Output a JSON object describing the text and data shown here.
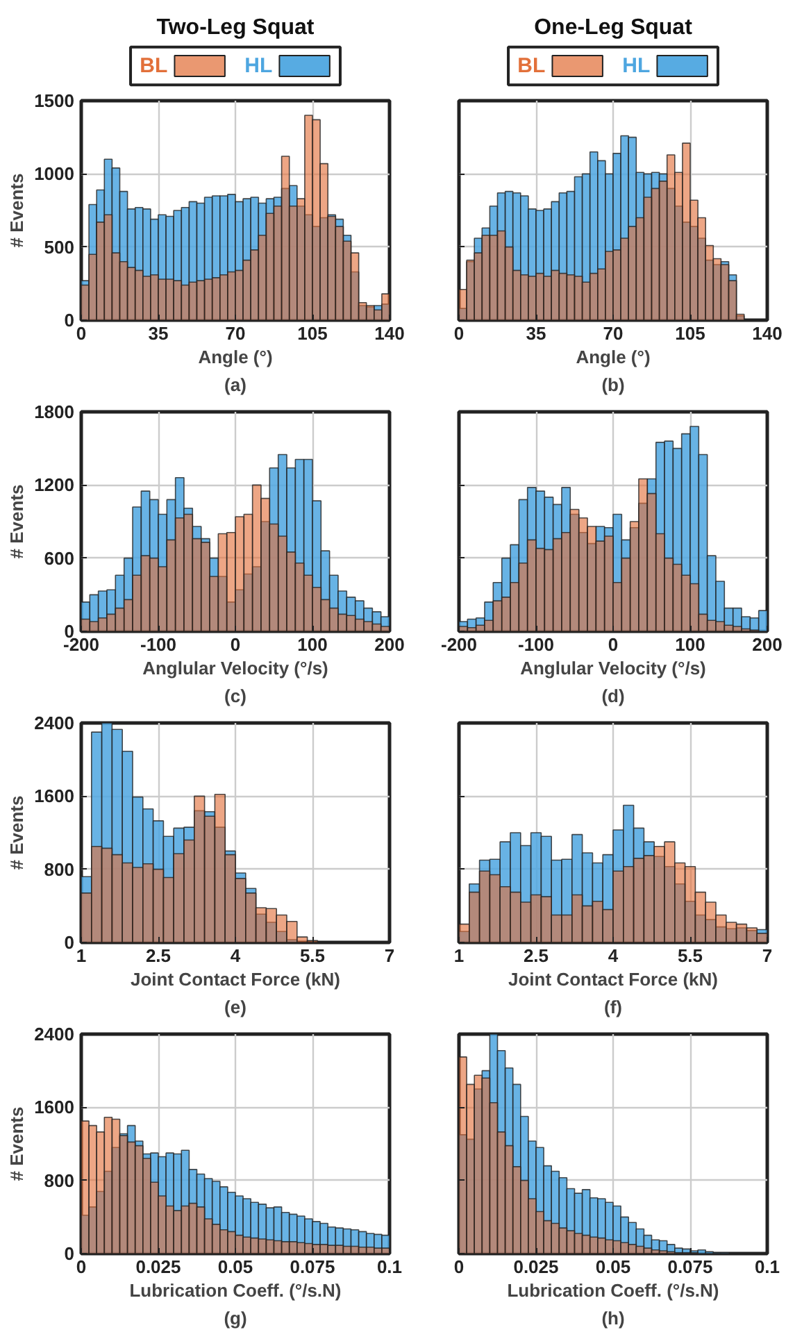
{
  "chart_data": [
    {
      "type": "histogram",
      "title": "Two-Leg Squat",
      "xlabel": "Angle (°)",
      "ylabel": "# Events",
      "annotations": [
        "(a)"
      ],
      "legend": "top",
      "grid": true,
      "bins": [
        0,
        3.5,
        7,
        10.5,
        14,
        17.5,
        21,
        24.5,
        28,
        31.5,
        35,
        38.5,
        42,
        45.5,
        49,
        52.5,
        56,
        59.5,
        63,
        66.5,
        70,
        73.5,
        77,
        80.5,
        84,
        87.5,
        91,
        94.5,
        98,
        101.5,
        105,
        108.5,
        112,
        115.5,
        119,
        122.5,
        126,
        129.5,
        133,
        136.5,
        140
      ],
      "series": [
        {
          "name": "HL",
          "color": "#4ea6e0",
          "values": [
            270,
            790,
            890,
            1100,
            1040,
            880,
            760,
            770,
            760,
            690,
            720,
            710,
            750,
            770,
            810,
            800,
            840,
            850,
            850,
            860,
            810,
            830,
            840,
            800,
            830,
            840,
            900,
            920,
            780,
            720,
            640,
            700,
            720,
            690,
            580,
            330,
            100,
            90,
            100,
            110
          ]
        },
        {
          "name": "BL",
          "color": "#e2703a",
          "values": [
            240,
            450,
            670,
            720,
            460,
            400,
            360,
            340,
            300,
            310,
            280,
            280,
            270,
            240,
            260,
            270,
            280,
            290,
            310,
            330,
            340,
            410,
            480,
            580,
            730,
            780,
            1120,
            780,
            830,
            1400,
            1370,
            1070,
            710,
            640,
            540,
            460,
            120,
            100,
            70,
            180
          ]
        }
      ],
      "xlim": [
        0,
        140
      ],
      "xticks": [
        0,
        35,
        70,
        105,
        140
      ],
      "ylim": [
        0,
        1500
      ],
      "yticks": [
        0,
        500,
        1000,
        1500
      ]
    },
    {
      "type": "histogram",
      "title": "One-Leg Squat",
      "xlabel": "Angle (°)",
      "annotations": [
        "(b)"
      ],
      "legend": "top",
      "grid": true,
      "tick_labels": "x",
      "bins": [
        0,
        3.5,
        7,
        10.5,
        14,
        17.5,
        21,
        24.5,
        28,
        31.5,
        35,
        38.5,
        42,
        45.5,
        49,
        52.5,
        56,
        59.5,
        63,
        66.5,
        70,
        73.5,
        77,
        80.5,
        84,
        87.5,
        91,
        94.5,
        98,
        101.5,
        105,
        108.5,
        112,
        115.5,
        119,
        122.5,
        126,
        129.5,
        133,
        136.5,
        140
      ],
      "series": [
        {
          "name": "HL",
          "color": "#4ea6e0",
          "values": [
            80,
            400,
            560,
            630,
            780,
            870,
            880,
            870,
            850,
            760,
            750,
            760,
            810,
            870,
            880,
            980,
            1000,
            1150,
            1090,
            1000,
            1140,
            1260,
            1250,
            1010,
            1000,
            1010,
            1000,
            900,
            780,
            670,
            640,
            560,
            410,
            380,
            400,
            310,
            30,
            0,
            0,
            0
          ]
        },
        {
          "name": "BL",
          "color": "#e2703a",
          "values": [
            210,
            410,
            460,
            580,
            580,
            610,
            500,
            340,
            310,
            300,
            320,
            300,
            340,
            320,
            310,
            300,
            260,
            320,
            350,
            470,
            480,
            560,
            640,
            700,
            840,
            900,
            950,
            1130,
            1010,
            1210,
            820,
            700,
            510,
            420,
            380,
            270,
            40,
            0,
            0,
            0
          ]
        }
      ],
      "xlim": [
        0,
        140
      ],
      "xticks": [
        0,
        35,
        70,
        105,
        140
      ],
      "ylim": [
        0,
        1500
      ],
      "yticks": [
        0,
        500,
        1000,
        1500
      ]
    },
    {
      "type": "histogram",
      "xlabel": "Anglular Velocity (°/s)",
      "ylabel": "# Events",
      "annotations": [
        "(c)"
      ],
      "grid": true,
      "bins": [
        -200,
        -188.9,
        -177.8,
        -166.7,
        -155.6,
        -144.4,
        -133.3,
        -122.2,
        -111.1,
        -100,
        -88.9,
        -77.8,
        -66.7,
        -55.6,
        -44.4,
        -33.3,
        -22.2,
        -11.1,
        0,
        11.1,
        22.2,
        33.3,
        44.4,
        55.6,
        66.7,
        77.8,
        88.9,
        100,
        111.1,
        122.2,
        133.3,
        144.4,
        155.6,
        166.7,
        177.8,
        188.9,
        200
      ],
      "series": [
        {
          "color": "#4ea6e0",
          "values": [
            240,
            300,
            330,
            340,
            460,
            600,
            1020,
            1150,
            1080,
            960,
            1080,
            1260,
            1010,
            860,
            760,
            600,
            450,
            240,
            340,
            470,
            530,
            900,
            1340,
            1450,
            1340,
            1410,
            1410,
            1070,
            660,
            460,
            330,
            280,
            250,
            190,
            160,
            120
          ]
        },
        {
          "color": "#e2703a",
          "values": [
            100,
            80,
            110,
            140,
            190,
            260,
            460,
            620,
            600,
            530,
            750,
            930,
            960,
            760,
            730,
            450,
            800,
            810,
            940,
            960,
            1200,
            1090,
            880,
            780,
            650,
            560,
            460,
            360,
            260,
            190,
            140,
            130,
            100,
            80,
            60,
            40
          ]
        }
      ],
      "xlim": [
        -200,
        200
      ],
      "xticks": [
        -200,
        -100,
        0,
        100,
        200
      ],
      "ylim": [
        0,
        1800
      ],
      "yticks": [
        0,
        600,
        1200,
        1800
      ]
    },
    {
      "type": "histogram",
      "xlabel": "Anglular Velocity (°/s)",
      "annotations": [
        "(d)"
      ],
      "grid": true,
      "tick_labels": "x",
      "bins": [
        -200,
        -188.9,
        -177.8,
        -166.7,
        -155.6,
        -144.4,
        -133.3,
        -122.2,
        -111.1,
        -100,
        -88.9,
        -77.8,
        -66.7,
        -55.6,
        -44.4,
        -33.3,
        -22.2,
        -11.1,
        0,
        11.1,
        22.2,
        33.3,
        44.4,
        55.6,
        66.7,
        77.8,
        88.9,
        100,
        111.1,
        122.2,
        133.3,
        144.4,
        155.6,
        166.7,
        177.8,
        188.9,
        200
      ],
      "series": [
        {
          "color": "#4ea6e0",
          "values": [
            80,
            100,
            110,
            240,
            400,
            600,
            710,
            1080,
            1180,
            1150,
            1100,
            1040,
            1180,
            960,
            810,
            720,
            860,
            850,
            960,
            750,
            850,
            1050,
            1250,
            1550,
            1560,
            1500,
            1620,
            1680,
            1450,
            620,
            410,
            190,
            190,
            120,
            110,
            170
          ]
        },
        {
          "color": "#e2703a",
          "values": [
            40,
            30,
            50,
            90,
            250,
            280,
            400,
            560,
            750,
            680,
            670,
            760,
            810,
            1000,
            930,
            860,
            740,
            780,
            400,
            600,
            900,
            1250,
            1130,
            800,
            600,
            550,
            460,
            390,
            140,
            90,
            80,
            50,
            40,
            20,
            10,
            0
          ]
        }
      ],
      "xlim": [
        -200,
        200
      ],
      "xticks": [
        -200,
        -100,
        0,
        100,
        200
      ],
      "ylim": [
        0,
        1800
      ],
      "yticks": [
        0,
        600,
        1200,
        1800
      ]
    },
    {
      "type": "histogram",
      "xlabel": "Joint Contact Force (kN)",
      "ylabel": "# Events",
      "annotations": [
        "(e)"
      ],
      "grid": true,
      "bins": [
        1,
        1.2,
        1.4,
        1.6,
        1.8,
        2,
        2.2,
        2.4,
        2.6,
        2.8,
        3,
        3.2,
        3.4,
        3.6,
        3.8,
        4,
        4.2,
        4.4,
        4.6,
        4.8,
        5,
        5.2,
        5.4,
        5.6,
        5.8,
        6,
        6.2,
        6.4,
        6.6,
        6.8,
        7
      ],
      "series": [
        {
          "color": "#4ea6e0",
          "values": [
            720,
            2300,
            2400,
            2330,
            2090,
            1590,
            1460,
            1330,
            1160,
            1250,
            1260,
            1440,
            1430,
            1260,
            1000,
            760,
            590,
            310,
            220,
            120,
            30,
            null,
            0,
            0,
            0,
            0,
            0,
            0,
            0,
            0
          ]
        },
        {
          "color": "#e2703a",
          "values": [
            540,
            1050,
            1030,
            960,
            870,
            820,
            860,
            800,
            710,
            970,
            1120,
            1600,
            1380,
            1620,
            960,
            700,
            540,
            380,
            370,
            300,
            230,
            60,
            20,
            0,
            0,
            0,
            0,
            0,
            0,
            0
          ]
        }
      ],
      "xlim": [
        1,
        7
      ],
      "xticks": [
        1,
        2.5,
        4,
        5.5,
        7
      ],
      "ylim": [
        0,
        2400
      ],
      "yticks": [
        0,
        800,
        1600,
        2400
      ]
    },
    {
      "type": "histogram",
      "xlabel": "Joint Contact Force (kN)",
      "annotations": [
        "(f)"
      ],
      "grid": true,
      "tick_labels": "x",
      "bins": [
        1,
        1.2,
        1.4,
        1.6,
        1.8,
        2,
        2.2,
        2.4,
        2.6,
        2.8,
        3,
        3.2,
        3.4,
        3.6,
        3.8,
        4,
        4.2,
        4.4,
        4.6,
        4.8,
        5,
        5.2,
        5.4,
        5.6,
        5.8,
        6,
        6.2,
        6.4,
        6.6,
        6.8,
        7
      ],
      "series": [
        {
          "color": "#4ea6e0",
          "values": [
            120,
            640,
            900,
            910,
            1100,
            1200,
            1060,
            1200,
            1160,
            900,
            910,
            1180,
            980,
            870,
            960,
            1230,
            1500,
            1250,
            1100,
            940,
            830,
            640,
            450,
            300,
            250,
            170,
            150,
            160,
            130,
            140
          ]
        },
        {
          "color": "#e2703a",
          "values": [
            200,
            550,
            780,
            740,
            610,
            550,
            440,
            520,
            500,
            300,
            300,
            520,
            400,
            450,
            360,
            780,
            830,
            920,
            950,
            1050,
            1100,
            870,
            830,
            550,
            440,
            300,
            220,
            200,
            160,
            100
          ]
        }
      ],
      "xlim": [
        1,
        7
      ],
      "xticks": [
        1,
        2.5,
        4,
        5.5,
        7
      ],
      "ylim": [
        0,
        2400
      ],
      "yticks": [
        0,
        800,
        1600,
        2400
      ]
    },
    {
      "type": "histogram",
      "xlabel": "Lubrication Coeff. (°/s.N)",
      "ylabel": "# Events",
      "annotations": [
        "(g)"
      ],
      "grid": true,
      "bins": [
        0,
        0.0025,
        0.005,
        0.0075,
        0.01,
        0.0125,
        0.015,
        0.0175,
        0.02,
        0.0225,
        0.025,
        0.0275,
        0.03,
        0.0325,
        0.035,
        0.0375,
        0.04,
        0.0425,
        0.045,
        0.0475,
        0.05,
        0.0525,
        0.055,
        0.0575,
        0.06,
        0.0625,
        0.065,
        0.0675,
        0.07,
        0.0725,
        0.075,
        0.0775,
        0.08,
        0.0825,
        0.085,
        0.0875,
        0.09,
        0.0925,
        0.095,
        0.0975,
        0.1
      ],
      "series": [
        {
          "color": "#4ea6e0",
          "values": [
            420,
            510,
            680,
            900,
            1160,
            1310,
            1400,
            1230,
            1090,
            1100,
            1060,
            1100,
            1090,
            1130,
            920,
            870,
            820,
            790,
            730,
            670,
            630,
            600,
            560,
            540,
            500,
            510,
            450,
            430,
            410,
            380,
            350,
            330,
            290,
            280,
            270,
            260,
            240,
            220,
            210,
            200
          ]
        },
        {
          "color": "#e2703a",
          "values": [
            1450,
            1400,
            1330,
            1490,
            1470,
            1290,
            1220,
            1180,
            1040,
            780,
            630,
            520,
            470,
            520,
            550,
            510,
            380,
            320,
            260,
            240,
            200,
            180,
            170,
            160,
            150,
            140,
            130,
            130,
            120,
            110,
            100,
            100,
            90,
            90,
            80,
            80,
            70,
            70,
            60,
            60
          ]
        }
      ],
      "xlim": [
        0,
        0.1
      ],
      "xticks": [
        0,
        0.025,
        0.05,
        0.075,
        0.1
      ],
      "ylim": [
        0,
        2400
      ],
      "yticks": [
        0,
        800,
        1600,
        2400
      ]
    },
    {
      "type": "histogram",
      "xlabel": "Lubrication Coeff. (°/s.N)",
      "annotations": [
        "(h)"
      ],
      "grid": true,
      "tick_labels": "x",
      "bins": [
        0,
        0.0025,
        0.005,
        0.0075,
        0.01,
        0.0125,
        0.015,
        0.0175,
        0.02,
        0.0225,
        0.025,
        0.0275,
        0.03,
        0.0325,
        0.035,
        0.0375,
        0.04,
        0.0425,
        0.045,
        0.0475,
        0.05,
        0.0525,
        0.055,
        0.0575,
        0.06,
        0.0625,
        0.065,
        0.0675,
        0.07,
        0.0725,
        0.075,
        0.0775,
        0.08,
        0.0825,
        0.085,
        0.0875,
        0.09,
        0.0925,
        0.095,
        0.0975,
        0.1
      ],
      "series": [
        {
          "color": "#4ea6e0",
          "values": [
            1300,
            1250,
            1800,
            2000,
            2400,
            2220,
            2030,
            1850,
            1500,
            1230,
            1160,
            960,
            900,
            830,
            710,
            660,
            700,
            610,
            600,
            560,
            520,
            400,
            340,
            270,
            200,
            150,
            140,
            100,
            60,
            50,
            30,
            40,
            20,
            10,
            10,
            0,
            0,
            0,
            0,
            0
          ]
        },
        {
          "color": "#e2703a",
          "values": [
            2150,
            1850,
            1950,
            1920,
            1650,
            1330,
            1180,
            950,
            800,
            600,
            460,
            360,
            330,
            280,
            250,
            220,
            200,
            180,
            170,
            150,
            140,
            120,
            100,
            80,
            60,
            40,
            30,
            20,
            10,
            10,
            10,
            0,
            0,
            0,
            0,
            0,
            0,
            0,
            0,
            0
          ]
        }
      ],
      "xlim": [
        0,
        0.1
      ],
      "xticks": [
        0,
        0.025,
        0.05,
        0.075,
        0.1
      ],
      "ylim": [
        0,
        2400
      ],
      "yticks": [
        0,
        800,
        1600,
        2400
      ]
    }
  ]
}
